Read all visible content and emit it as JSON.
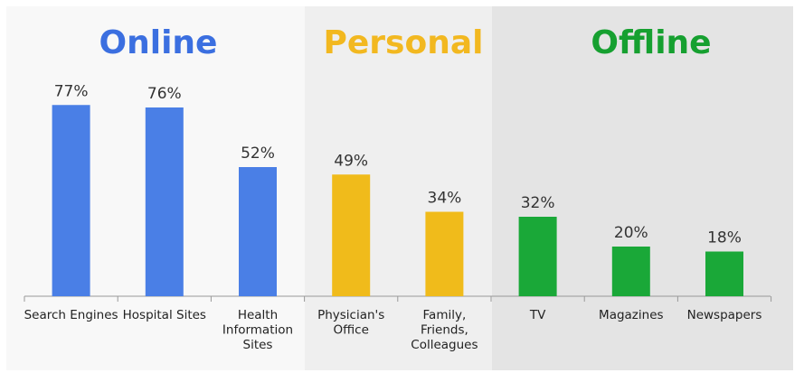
{
  "chart_data": {
    "type": "bar",
    "groups": [
      {
        "title": "Online",
        "color": "#4a7fe6",
        "background": "#f8f8f8",
        "categories": [
          "Search Engines",
          "Hospital Sites",
          "Health Information Sites"
        ],
        "values": [
          77,
          76,
          52
        ],
        "labels": [
          "77%",
          "76%",
          "52%"
        ]
      },
      {
        "title": "Personal",
        "color": "#f0bb1b",
        "background": "#efefef",
        "categories": [
          "Physician's Office",
          "Family, Friends, Colleagues"
        ],
        "values": [
          49,
          34
        ],
        "labels": [
          "49%",
          "34%"
        ]
      },
      {
        "title": "Offline",
        "color": "#1aa838",
        "background": "#e4e4e4",
        "categories": [
          "TV",
          "Magazines",
          "Newspapers"
        ],
        "values": [
          32,
          20,
          18
        ],
        "labels": [
          "32%",
          "20%",
          "18%"
        ]
      }
    ],
    "title_colors": {
      "Online": "#3b6fe0",
      "Personal": "#f2b820",
      "Offline": "#16a030"
    },
    "ylim": [
      0,
      100
    ],
    "grid": false
  }
}
